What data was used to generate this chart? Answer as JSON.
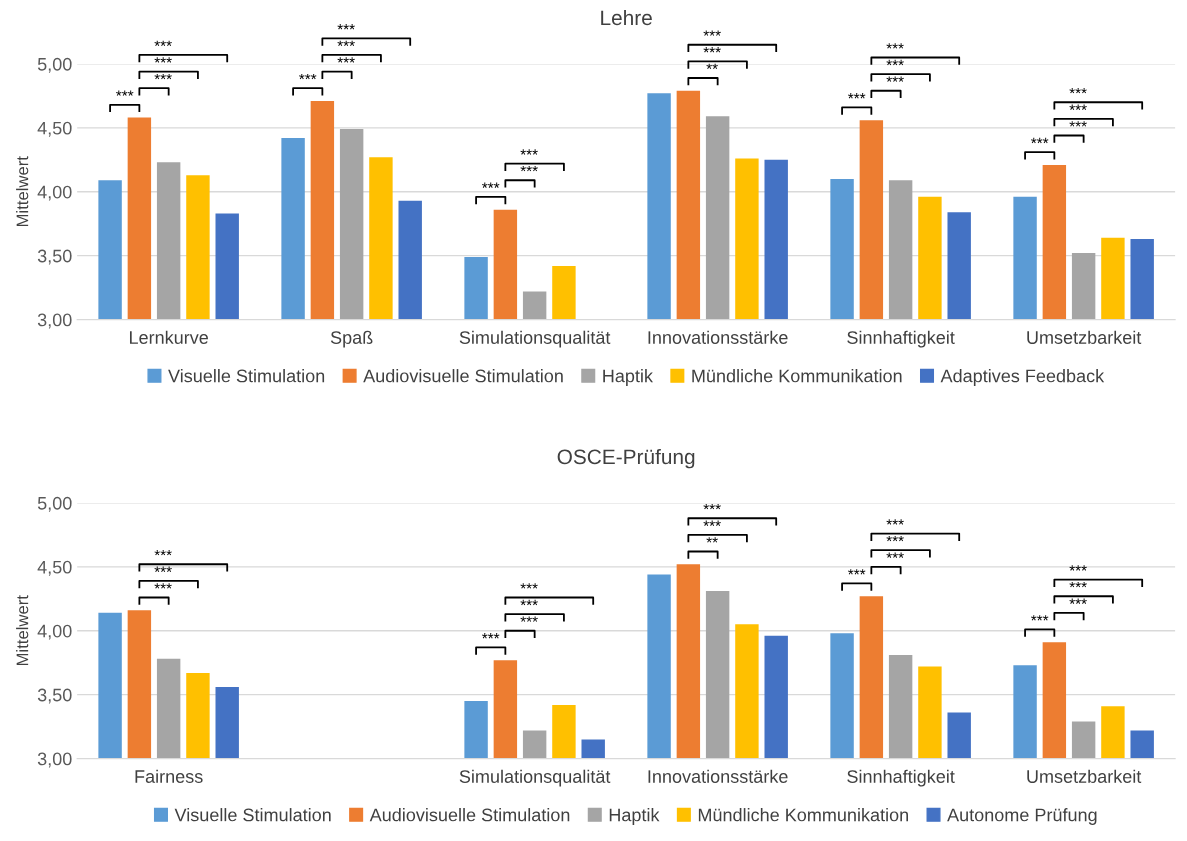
{
  "chart_data": [
    {
      "type": "bar",
      "title": "Lehre",
      "ylabel": "Mittelwert",
      "categories": [
        "Lernkurve",
        "Spaß",
        "Simulationsqualität",
        "Innovationsstärke",
        "Sinnhaftigkeit",
        "Umsetzbarkeit"
      ],
      "series": [
        {
          "name": "Visuelle Stimulation",
          "color": "#5b9bd5",
          "values": [
            4.09,
            4.42,
            3.49,
            4.77,
            4.1,
            3.96
          ]
        },
        {
          "name": "Audiovisuelle Stimulation",
          "color": "#ed7d31",
          "values": [
            4.58,
            4.71,
            3.86,
            4.79,
            4.56,
            4.21
          ]
        },
        {
          "name": "Haptik",
          "color": "#a5a5a5",
          "values": [
            4.23,
            4.49,
            3.22,
            4.59,
            4.09,
            3.52
          ]
        },
        {
          "name": "Mündliche Kommunikation",
          "color": "#ffc000",
          "values": [
            4.13,
            4.27,
            3.42,
            4.26,
            3.96,
            3.64
          ]
        },
        {
          "name": "Adaptives Feedback",
          "color": "#4472c4",
          "values": [
            3.83,
            3.93,
            null,
            4.25,
            3.84,
            3.63
          ]
        }
      ],
      "ylim": [
        3,
        5
      ],
      "yticks": [
        {
          "value": 3,
          "label": "3,00"
        },
        {
          "value": 3.5,
          "label": "3,50"
        },
        {
          "value": 4,
          "label": "4,00"
        },
        {
          "value": 4.5,
          "label": "4,50"
        },
        {
          "value": 5,
          "label": "5,00"
        }
      ],
      "grid": "y",
      "legend": "bottom",
      "annotations": [
        "***",
        "***",
        "***",
        "***",
        "***",
        "***",
        "***",
        "***",
        "***",
        "***",
        "***",
        "**",
        "***",
        "***",
        "***",
        "***",
        "***",
        "***",
        "***",
        "***",
        "***",
        "***"
      ]
    },
    {
      "type": "bar",
      "title": "OSCE-Prüfung",
      "ylabel": "Mittelwert",
      "categories": [
        "Fairness",
        null,
        "Simulationsqualität",
        "Innovationsstärke",
        "Sinnhaftigkeit",
        "Umsetzbarkeit"
      ],
      "series": [
        {
          "name": "Visuelle Stimulation",
          "color": "#5b9bd5",
          "values": [
            4.14,
            null,
            3.45,
            4.44,
            3.98,
            3.73
          ]
        },
        {
          "name": "Audiovisuelle Stimulation",
          "color": "#ed7d31",
          "values": [
            4.16,
            null,
            3.77,
            4.52,
            4.27,
            3.91
          ]
        },
        {
          "name": "Haptik",
          "color": "#a5a5a5",
          "values": [
            3.78,
            null,
            3.22,
            4.31,
            3.81,
            3.29
          ]
        },
        {
          "name": "Mündliche Kommunikation",
          "color": "#ffc000",
          "values": [
            3.67,
            null,
            3.42,
            4.05,
            3.72,
            3.41
          ]
        },
        {
          "name": "Autonome Prüfung",
          "color": "#4472c4",
          "values": [
            3.56,
            null,
            3.15,
            3.96,
            3.36,
            3.22
          ]
        }
      ],
      "ylim": [
        3,
        5
      ],
      "yticks": [
        {
          "value": 3,
          "label": "3,00"
        },
        {
          "value": 3.5,
          "label": "3,50"
        },
        {
          "value": 4,
          "label": "4,00"
        },
        {
          "value": 4.5,
          "label": "4,50"
        },
        {
          "value": 5,
          "label": "5,00"
        }
      ],
      "grid": "y",
      "legend": "bottom",
      "annotations": [
        "***",
        "***",
        "***",
        "***",
        "***",
        "***",
        "***",
        "**",
        "***",
        "***",
        "***",
        "***",
        "***",
        "***",
        "***",
        "***",
        "***",
        "***"
      ]
    }
  ]
}
